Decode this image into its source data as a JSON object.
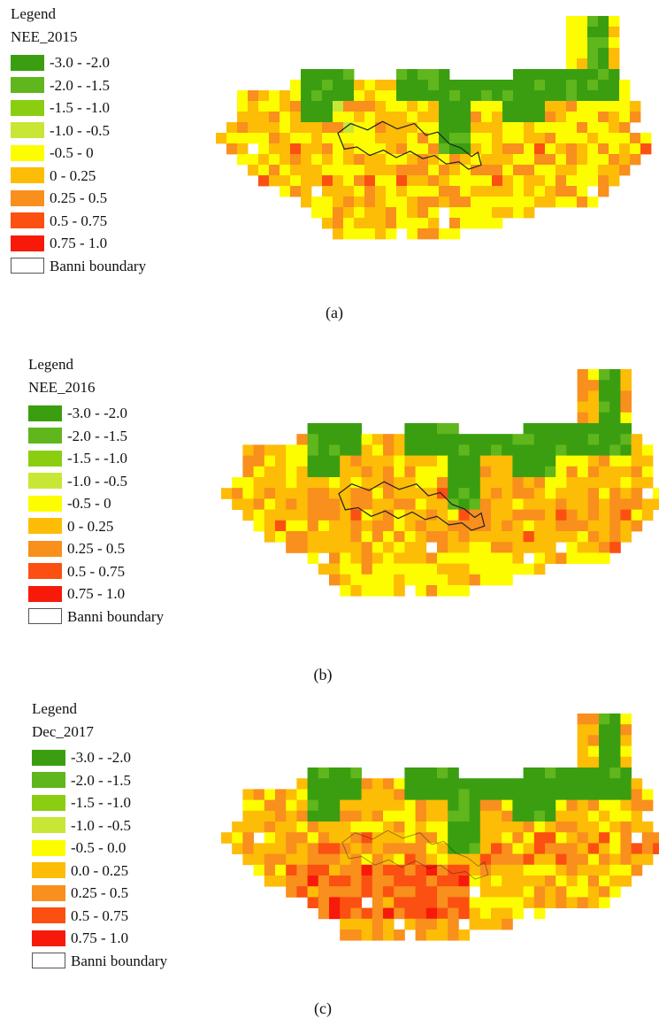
{
  "palette": {
    "-3.0 - -2.0": "#3a9e10",
    "-2.0 - -1.5": "#60b61d",
    "-1.5 - -1.0": "#8bce11",
    "-1.0 - -0.5": "#c8e636",
    "-0.5 - 0": "#fdfd00",
    "0 - 0.25": "#fdbc06",
    "0.25 - 0.5": "#f98f1c",
    "0.5 - 0.75": "#fb5012",
    "0.75 - 1.0": "#f71a0b",
    "boundary": "#222222"
  },
  "panels": [
    {
      "legend_title": "Legend",
      "layer_name": "NEE_2015",
      "classes": [
        "-3.0 - -2.0",
        "-2.0 - -1.5",
        "-1.5 - -1.0",
        "-1.0 - -0.5",
        "-0.5 - 0",
        "0 - 0.25",
        "0.25 - 0.5",
        "0.5 - 0.75",
        "0.75 - 1.0"
      ],
      "boundary_label": "Banni boundary",
      "caption": "(a)"
    },
    {
      "legend_title": "Legend",
      "layer_name": "NEE_2016",
      "classes": [
        "-3.0 - -2.0",
        "-2.0 - -1.5",
        "-1.5 - -1.0",
        "-1.0 - -0.5",
        "-0.5 - 0",
        "0 - 0.25",
        "0.25 - 0.5",
        "0.5 - 0.75",
        "0.75 - 1.0"
      ],
      "boundary_label": "Banni boundary",
      "caption": "(b)"
    },
    {
      "legend_title": "Legend",
      "layer_name": "Dec_2017",
      "classes": [
        "-3.0 - -2.0",
        "-2.0 - -1.5",
        "-1.5 - -1.0",
        "-1.0 - -0.5",
        "-0.5 - 0.0",
        "0.0 - 0.25",
        "0.25 - 0.5",
        "0.5 - 0.75",
        "0.75 - 1.0"
      ],
      "boundary_label": "Banni boundary",
      "caption": "(c)"
    }
  ]
}
